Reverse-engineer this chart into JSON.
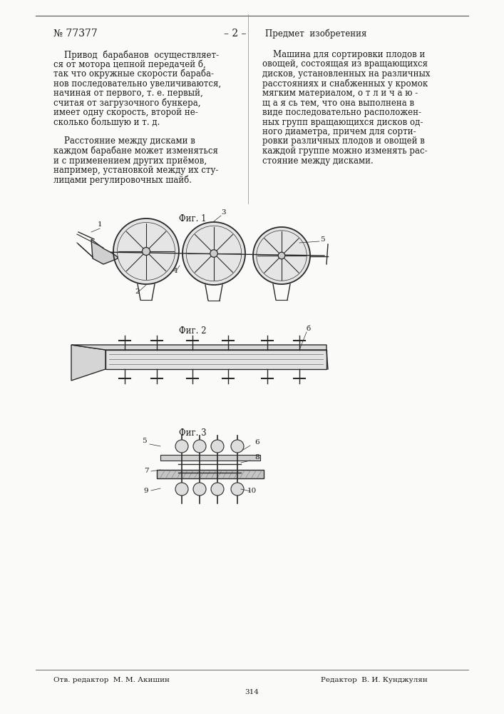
{
  "bg_color": "#f5f5f0",
  "page_color": "#fafaf8",
  "text_color": "#1a1a1a",
  "patent_number": "№ 77377",
  "page_number": "– 2 –",
  "left_col_text": [
    "    Привод  барабанов  осуществляет-",
    "ся от мотора цепной передачей б,",
    "так что окружные скорости бараба-",
    "нов последовательно увеличиваются,",
    "начиная от первого, т. е. первый,",
    "считая от загрузочного бункера,",
    "имеет одну скорость, второй не-",
    "сколько большую и т. д.",
    "",
    "    Расстояние между дисками в",
    "каждом барабане может изменяться",
    "и с применением других приёмов,",
    "например, установкой между их сту-",
    "лицами регулировочных шайб."
  ],
  "right_col_header": "Предмет  изобретения",
  "right_col_text": [
    "    Машина для сортировки плодов и",
    "овощей, состоящая из вращающихся",
    "дисков, установленных на различных",
    "расстояниях и снабженных у кромок",
    "мягким материалом, о т л и ч а ю -",
    "щ а я сь тем, что она выполнена в",
    "виде последовательно расположен-",
    "ных групп вращающихся дисков од-",
    "ного диаметра, причем для сорти-",
    "ровки различных плодов и овощей в",
    "каждой группе можно изменять рас-",
    "стояние между дисками."
  ],
  "fig1_label": "Фиг. 1",
  "fig2_label": "Фиг. 2",
  "fig3_label": "Фиг. 3",
  "footer_left": "Отв. редактор  М. М. Акишин",
  "footer_right": "Редактор  В. И. Кунджулян",
  "page_bottom": "314"
}
